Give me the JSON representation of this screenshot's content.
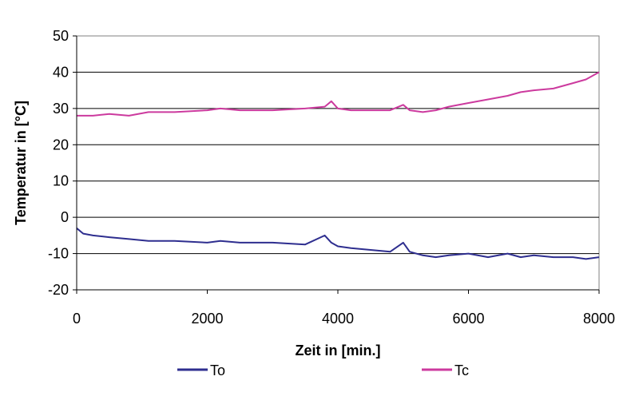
{
  "chart_data": {
    "type": "line",
    "title": "",
    "xlabel": "Zeit in [min.]",
    "ylabel": "Temperatur in [°C]",
    "xlim": [
      0,
      8000
    ],
    "ylim": [
      -20,
      50
    ],
    "x_ticks": [
      0,
      2000,
      4000,
      6000,
      8000
    ],
    "y_ticks": [
      -20,
      -10,
      0,
      10,
      20,
      30,
      40,
      50
    ],
    "grid": "horizontal",
    "legend_position": "bottom",
    "series": [
      {
        "name": "To",
        "color": "#2e2e8f",
        "x": [
          0,
          100,
          250,
          500,
          800,
          1100,
          1500,
          2000,
          2200,
          2500,
          3000,
          3500,
          3800,
          3900,
          4000,
          4200,
          4500,
          4800,
          5000,
          5100,
          5300,
          5500,
          5700,
          6000,
          6300,
          6600,
          6800,
          7000,
          7300,
          7600,
          7800,
          8000
        ],
        "y": [
          -3,
          -4.5,
          -5,
          -5.5,
          -6,
          -6.5,
          -6.5,
          -7,
          -6.5,
          -7,
          -7,
          -7.5,
          -5,
          -7,
          -8,
          -8.5,
          -9,
          -9.5,
          -7,
          -9.5,
          -10.5,
          -11,
          -10.5,
          -10,
          -11,
          -10,
          -11,
          -10.5,
          -11,
          -11,
          -11.5,
          -11
        ]
      },
      {
        "name": "Tc",
        "color": "#cc3a9e",
        "x": [
          0,
          100,
          250,
          500,
          800,
          1100,
          1500,
          2000,
          2200,
          2500,
          3000,
          3500,
          3800,
          3900,
          4000,
          4200,
          4500,
          4800,
          5000,
          5100,
          5300,
          5500,
          5700,
          6000,
          6300,
          6600,
          6800,
          7000,
          7300,
          7600,
          7800,
          8000
        ],
        "y": [
          28,
          28,
          28,
          28.5,
          28,
          29,
          29,
          29.5,
          30,
          29.5,
          29.5,
          30,
          30.5,
          32,
          30,
          29.5,
          29.5,
          29.5,
          31,
          29.5,
          29,
          29.5,
          30.5,
          31.5,
          32.5,
          33.5,
          34.5,
          35,
          35.5,
          37,
          38,
          40
        ]
      }
    ]
  }
}
